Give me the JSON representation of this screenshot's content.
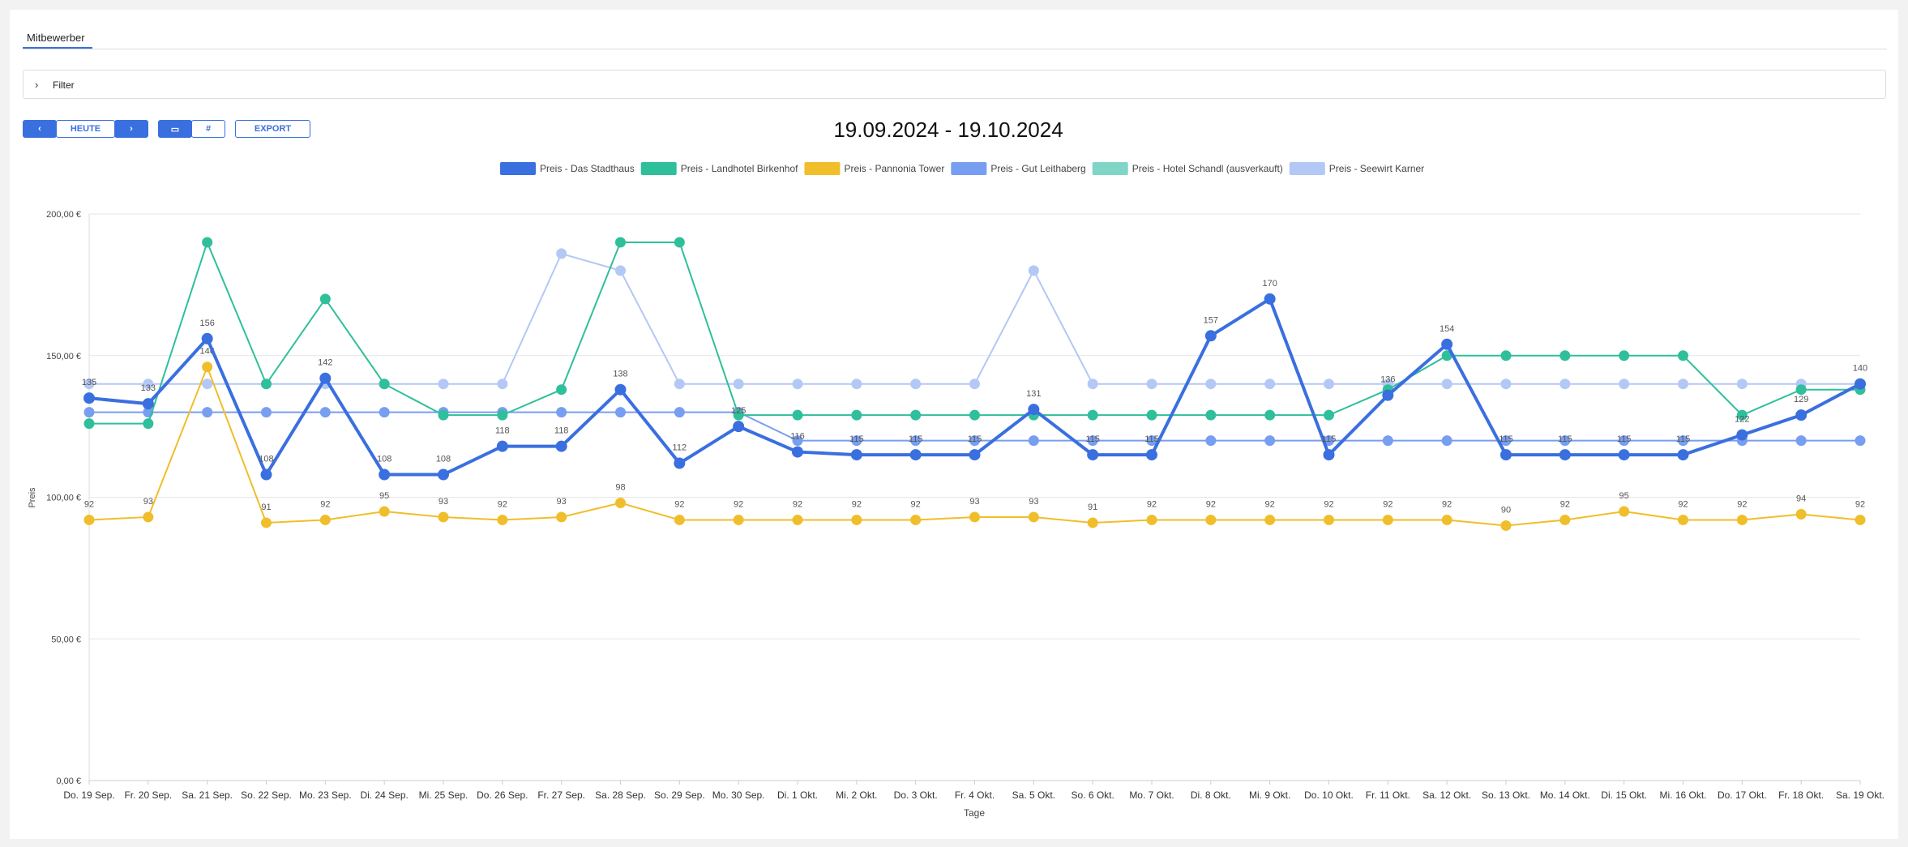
{
  "tab": "Mitbewerber",
  "filter": "Filter",
  "buttons": {
    "today": "HEUTE",
    "export": "EXPORT"
  },
  "chart_data": {
    "type": "line",
    "title": "19.09.2024 - 19.10.2024",
    "xlabel": "Tage",
    "ylabel": "Preis",
    "categories": [
      "Do. 19 Sep.",
      "Fr. 20 Sep.",
      "Sa. 21 Sep.",
      "So. 22 Sep.",
      "Mo. 23 Sep.",
      "Di. 24 Sep.",
      "Mi. 25 Sep.",
      "Do. 26 Sep.",
      "Fr. 27 Sep.",
      "Sa. 28 Sep.",
      "So. 29 Sep.",
      "Mo. 30 Sep.",
      "Di. 1 Okt.",
      "Mi. 2 Okt.",
      "Do. 3 Okt.",
      "Fr. 4 Okt.",
      "Sa. 5 Okt.",
      "So. 6 Okt.",
      "Mo. 7 Okt.",
      "Di. 8 Okt.",
      "Mi. 9 Okt.",
      "Do. 10 Okt.",
      "Fr. 11 Okt.",
      "Sa. 12 Okt.",
      "So. 13 Okt.",
      "Mo. 14 Okt.",
      "Di. 15 Okt.",
      "Mi. 16 Okt.",
      "Do. 17 Okt.",
      "Fr. 18 Okt.",
      "Sa. 19 Okt."
    ],
    "series": [
      {
        "name": "Preis - Das Stadthaus",
        "color": "#3a6fdf",
        "values": [
          135,
          133,
          156,
          108,
          142,
          108,
          108,
          118,
          118,
          138,
          112,
          125,
          116,
          115,
          115,
          115,
          131,
          115,
          115,
          157,
          170,
          115,
          136,
          154,
          115,
          115,
          115,
          115,
          122,
          129,
          140
        ]
      },
      {
        "name": "Preis - Landhotel Birkenhof",
        "color": "#2fbf9b",
        "values": [
          126,
          126,
          190,
          140,
          170,
          140,
          129,
          129,
          138,
          190,
          190,
          129,
          129,
          129,
          129,
          129,
          129,
          129,
          129,
          129,
          129,
          129,
          138,
          150,
          150,
          150,
          150,
          150,
          129,
          138,
          138
        ]
      },
      {
        "name": "Preis - Pannonia Tower",
        "color": "#f0be2a",
        "values": [
          92,
          93,
          146,
          91,
          92,
          95,
          93,
          92,
          93,
          98,
          92,
          92,
          92,
          92,
          92,
          93,
          93,
          91,
          92,
          92,
          92,
          92,
          92,
          92,
          90,
          92,
          95,
          92,
          92,
          94,
          92
        ]
      },
      {
        "name": "Preis - Gut Leithaberg",
        "color": "#779ef0",
        "values": [
          130,
          130,
          130,
          130,
          130,
          130,
          130,
          130,
          130,
          130,
          130,
          130,
          120,
          120,
          120,
          120,
          120,
          120,
          120,
          120,
          120,
          120,
          120,
          120,
          120,
          120,
          120,
          120,
          120,
          120,
          120
        ]
      },
      {
        "name": "Preis - Hotel Schandl (ausverkauft)",
        "color": "#80d6c6",
        "values": [
          null,
          null,
          null,
          null,
          null,
          null,
          null,
          null,
          null,
          null,
          null,
          null,
          null,
          null,
          null,
          null,
          null,
          null,
          null,
          null,
          null,
          null,
          138,
          null,
          null,
          null,
          null,
          null,
          null,
          null,
          null
        ]
      },
      {
        "name": "Preis - Seewirt Karner",
        "color": "#b3c8f5",
        "values": [
          140,
          140,
          140,
          140,
          140,
          140,
          140,
          140,
          186,
          180,
          140,
          140,
          140,
          140,
          140,
          140,
          180,
          140,
          140,
          140,
          140,
          140,
          140,
          140,
          140,
          140,
          140,
          140,
          140,
          140,
          140
        ]
      }
    ],
    "ylim": [
      0,
      200
    ],
    "yticks": [
      {
        "value": 0,
        "label": "0,00 €"
      },
      {
        "value": 50,
        "label": "50,00 €"
      },
      {
        "value": 100,
        "label": "100,00 €"
      },
      {
        "value": 150,
        "label": "150,00 €"
      },
      {
        "value": 200,
        "label": "200,00 €"
      }
    ],
    "grid": true
  }
}
